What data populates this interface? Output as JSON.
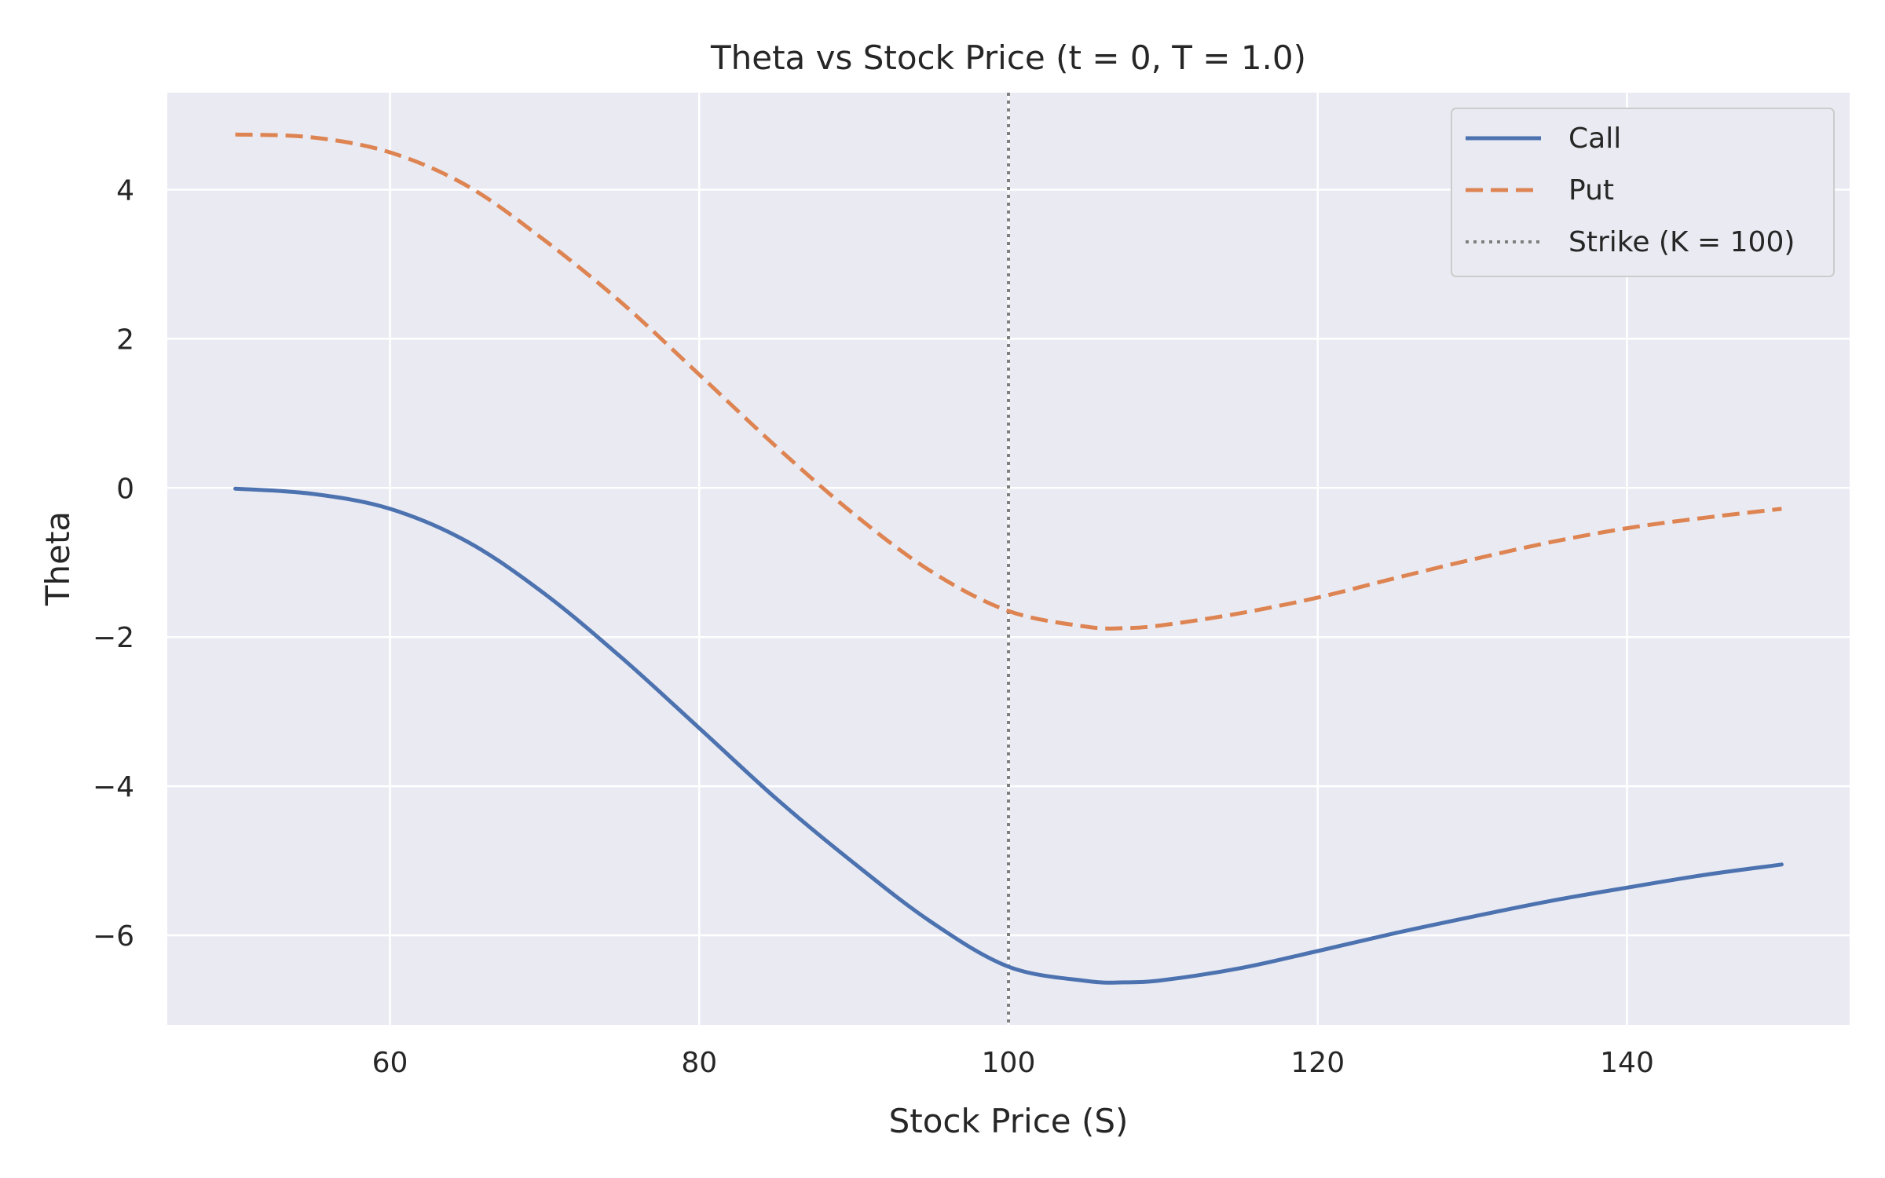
{
  "chart_data": {
    "type": "line",
    "title": "Theta vs Stock Price (t = 0, T = 1.0)",
    "xlabel": "Stock Price (S)",
    "ylabel": "Theta",
    "xlim": [
      45.6,
      154.4
    ],
    "ylim": [
      -7.2,
      5.3
    ],
    "x_ticks": [
      60,
      80,
      100,
      120,
      140
    ],
    "x_tick_labels": [
      "60",
      "80",
      "100",
      "120",
      "140"
    ],
    "y_ticks": [
      -6,
      -4,
      -2,
      0,
      2,
      4
    ],
    "y_tick_labels": [
      "−6",
      "−4",
      "−2",
      "0",
      "2",
      "4"
    ],
    "grid": true,
    "legend_position": "top-right",
    "colors": {
      "background": "#eaeaf2",
      "grid": "#ffffff",
      "call": "#4c72b0",
      "put": "#dd8452",
      "strike": "#7f7f7f"
    },
    "x": [
      50,
      55,
      60,
      65,
      70,
      75,
      80,
      85,
      90,
      95,
      100,
      105,
      107.5,
      110,
      115,
      120,
      125,
      130,
      135,
      140,
      145,
      150
    ],
    "series": [
      {
        "name": "Call",
        "style": "solid",
        "values": [
          -0.01,
          -0.08,
          -0.28,
          -0.72,
          -1.42,
          -2.28,
          -3.22,
          -4.17,
          -5.03,
          -5.82,
          -6.42,
          -6.61,
          -6.63,
          -6.6,
          -6.44,
          -6.21,
          -5.97,
          -5.75,
          -5.54,
          -5.36,
          -5.19,
          -5.05
        ]
      },
      {
        "name": "Put",
        "style": "dashed",
        "values": [
          4.74,
          4.7,
          4.5,
          4.05,
          3.32,
          2.48,
          1.52,
          0.55,
          -0.35,
          -1.12,
          -1.65,
          -1.86,
          -1.88,
          -1.84,
          -1.68,
          -1.47,
          -1.21,
          -0.96,
          -0.73,
          -0.54,
          -0.4,
          -0.28
        ]
      }
    ],
    "vlines": [
      {
        "name": "Strike (K = 100)",
        "x": 100,
        "style": "dotted"
      }
    ],
    "legend": [
      "Call",
      "Put",
      "Strike (K = 100)"
    ]
  }
}
